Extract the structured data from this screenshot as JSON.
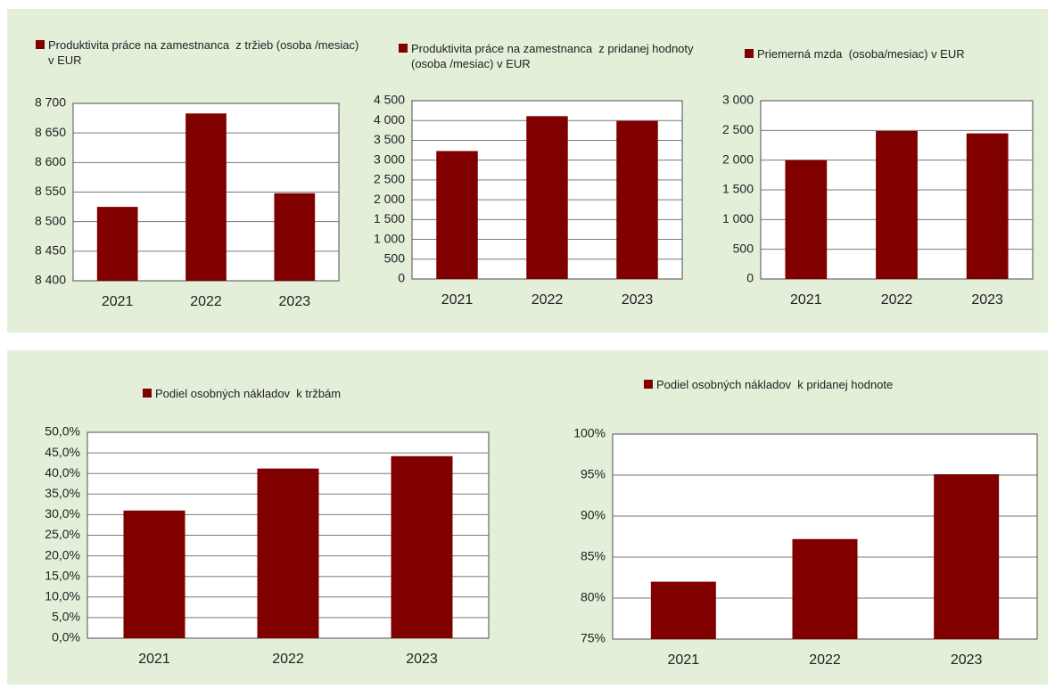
{
  "chart_data": [
    {
      "type": "bar",
      "categories": [
        "2021",
        "2022",
        "2023"
      ],
      "series": [
        {
          "name": "Produktivita práce na zamestnanca  z tržieb (osoba /mesiac) v EUR",
          "color": "#800000",
          "values": [
            8525,
            8683,
            8548
          ]
        }
      ],
      "ylim": [
        8400,
        8700
      ],
      "yticks": [
        {
          "value": 8400,
          "label": "8 400"
        },
        {
          "value": 8450,
          "label": "8 450"
        },
        {
          "value": 8500,
          "label": "8 500"
        },
        {
          "value": 8550,
          "label": "8 550"
        },
        {
          "value": 8600,
          "label": "8 600"
        },
        {
          "value": 8650,
          "label": "8 650"
        },
        {
          "value": 8700,
          "label": "8 700"
        }
      ],
      "grid": true
    },
    {
      "type": "bar",
      "categories": [
        "2021",
        "2022",
        "2023"
      ],
      "series": [
        {
          "name": "Produktivita práce na zamestnanca  z pridanej hodnoty (osoba /mesiac) v EUR",
          "color": "#800000",
          "values": [
            3230,
            4110,
            3990
          ]
        }
      ],
      "ylim": [
        0,
        4500
      ],
      "yticks": [
        0,
        500,
        {
          "value": 1000,
          "label": "1 000"
        },
        {
          "value": 1500,
          "label": "1 500"
        },
        {
          "value": 2000,
          "label": "2 000"
        },
        {
          "value": 2500,
          "label": "2 500"
        },
        {
          "value": 3000,
          "label": "3 000"
        },
        {
          "value": 3500,
          "label": "3 500"
        },
        {
          "value": 4000,
          "label": "4 000"
        },
        {
          "value": 4500,
          "label": "4 500"
        }
      ],
      "grid": true
    },
    {
      "type": "bar",
      "categories": [
        "2021",
        "2022",
        "2023"
      ],
      "series": [
        {
          "name": "Priemerná mzda  (osoba/mesiac) v EUR",
          "color": "#800000",
          "values": [
            2000,
            2490,
            2450
          ]
        }
      ],
      "ylim": [
        0,
        3000
      ],
      "yticks": [
        0,
        500,
        {
          "value": 1000,
          "label": "1 000"
        },
        {
          "value": 1500,
          "label": "1 500"
        },
        {
          "value": 2000,
          "label": "2 000"
        },
        {
          "value": 2500,
          "label": "2 500"
        },
        {
          "value": 3000,
          "label": "3 000"
        }
      ],
      "grid": true
    },
    {
      "type": "bar",
      "categories": [
        "2021",
        "2022",
        "2023"
      ],
      "series": [
        {
          "name": "Podiel osobných nákladov  k tržbám",
          "color": "#800000",
          "values": [
            31.0,
            41.2,
            44.2
          ]
        }
      ],
      "ylim": [
        0,
        50
      ],
      "yticks": [
        {
          "value": 0,
          "label": "0,0%"
        },
        {
          "value": 5,
          "label": "5,0%"
        },
        {
          "value": 10,
          "label": "10,0%"
        },
        {
          "value": 15,
          "label": "15,0%"
        },
        {
          "value": 20,
          "label": "20,0%"
        },
        {
          "value": 25,
          "label": "25,0%"
        },
        {
          "value": 30,
          "label": "30,0%"
        },
        {
          "value": 35,
          "label": "35,0%"
        },
        {
          "value": 40,
          "label": "40,0%"
        },
        {
          "value": 45,
          "label": "45,0%"
        },
        {
          "value": 50,
          "label": "50,0%"
        }
      ],
      "grid": true
    },
    {
      "type": "bar",
      "categories": [
        "2021",
        "2022",
        "2023"
      ],
      "series": [
        {
          "name": "Podiel osobných nákladov  k pridanej hodnote",
          "color": "#800000",
          "values": [
            82.0,
            87.2,
            95.1
          ]
        }
      ],
      "ylim": [
        75,
        100
      ],
      "yticks": [
        {
          "value": 75,
          "label": "75%"
        },
        {
          "value": 80,
          "label": "80%"
        },
        {
          "value": 85,
          "label": "85%"
        },
        {
          "value": 90,
          "label": "90%"
        },
        {
          "value": 95,
          "label": "95%"
        },
        {
          "value": 100,
          "label": "100%"
        }
      ],
      "grid": true
    }
  ]
}
